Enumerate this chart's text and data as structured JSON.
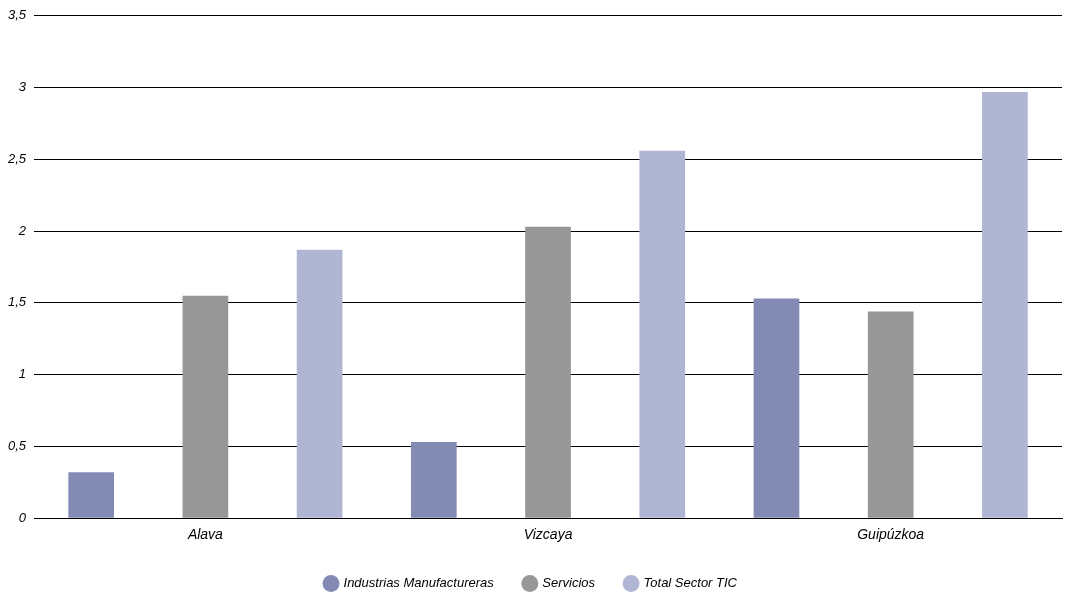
{
  "chart_data": {
    "type": "bar",
    "categories": [
      "Alava",
      "Vizcaya",
      "Guipúzkoa"
    ],
    "series": [
      {
        "name": "Industrias Manufactureras",
        "color": "#838bb5",
        "values": [
          0.32,
          0.53,
          1.53
        ]
      },
      {
        "name": "Servicios",
        "color": "#979797",
        "values": [
          1.55,
          2.03,
          1.44
        ]
      },
      {
        "name": "Total Sector TIC",
        "color": "#b0b5d3",
        "values": [
          1.87,
          2.56,
          2.97
        ]
      }
    ],
    "ylim": [
      0,
      3.5
    ],
    "yticks": [
      0,
      {
        "value": 0.5,
        "label": "0,5"
      },
      1,
      {
        "value": 1.5,
        "label": "1,5"
      },
      2,
      {
        "value": 2.5,
        "label": "2,5"
      },
      3,
      {
        "value": 3.5,
        "label": "3,5"
      }
    ],
    "grid": "y",
    "legend": "bottom"
  }
}
